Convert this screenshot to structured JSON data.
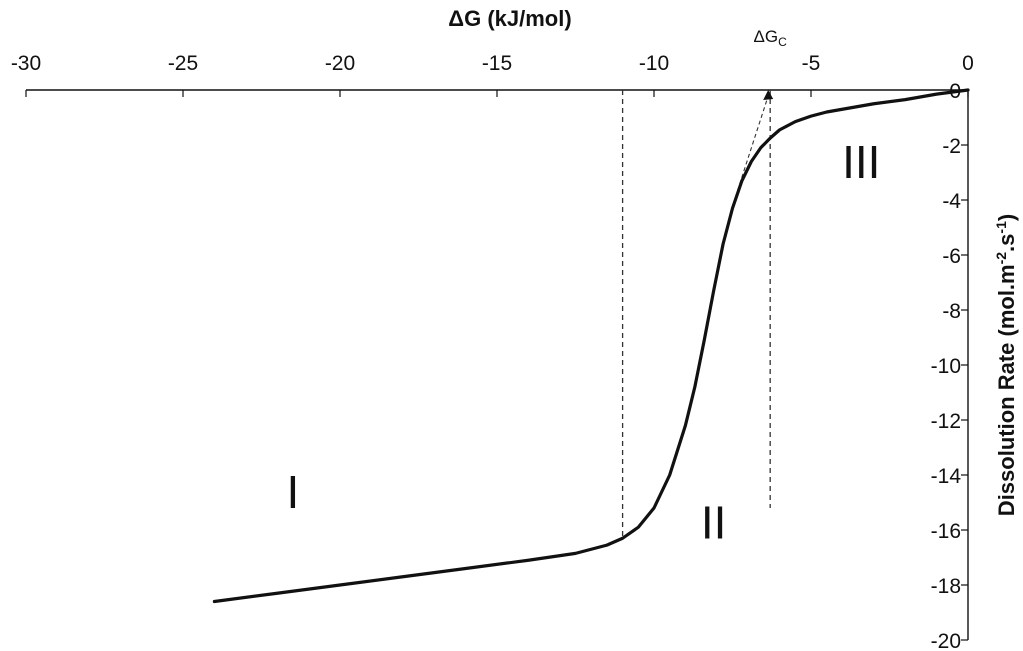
{
  "chart_data": {
    "type": "line",
    "xlabel_parts": [
      "ΔG (kJ/mol)"
    ],
    "ylabel_parts": [
      "Dissolution Rate (mol.m",
      "-2",
      ".s",
      "-1",
      ")"
    ],
    "xlim": [
      -30,
      0
    ],
    "ylim": [
      -20,
      0
    ],
    "x_ticks": [
      "-30",
      "-25",
      "-20",
      "-15",
      "-10",
      "-5",
      "0"
    ],
    "x_tick_values": [
      -30,
      -25,
      -20,
      -15,
      -10,
      -5,
      0
    ],
    "y_ticks": [
      "0",
      "-2",
      "-4",
      "-6",
      "-8",
      "-10",
      "-12",
      "-14",
      "-16",
      "-18",
      "-20"
    ],
    "y_tick_values": [
      0,
      -2,
      -4,
      -6,
      -8,
      -10,
      -12,
      -14,
      -16,
      -18,
      -20
    ],
    "x_axis_position": "top",
    "y_axis_position": "right",
    "grid": false,
    "series": [
      {
        "x": [
          -24.0,
          -22.0,
          -20.0,
          -18.0,
          -16.0,
          -14.0,
          -12.5,
          -11.5,
          -11.0,
          -10.5,
          -10.0,
          -9.5,
          -9.0,
          -8.7,
          -8.4,
          -8.1,
          -7.8,
          -7.5,
          -7.2,
          -6.9,
          -6.6,
          -6.3,
          -6.0,
          -5.5,
          -5.0,
          -4.5,
          -4.0,
          -3.0,
          -2.0,
          -1.0,
          0.0
        ],
        "y": [
          -18.6,
          -18.3,
          -18.0,
          -17.7,
          -17.4,
          -17.1,
          -16.85,
          -16.55,
          -16.3,
          -15.9,
          -15.2,
          -14.0,
          -12.2,
          -10.8,
          -9.1,
          -7.3,
          -5.6,
          -4.3,
          -3.3,
          -2.6,
          -2.1,
          -1.75,
          -1.45,
          -1.15,
          -0.95,
          -0.8,
          -0.7,
          -0.5,
          -0.35,
          -0.15,
          0.0
        ],
        "color": "#111111"
      }
    ],
    "reference_lines": [
      {
        "x": -11,
        "y_from": -16.3,
        "y_to": 0,
        "style": "dashed"
      },
      {
        "x": -6.3,
        "y_from": -15.2,
        "y_to": 0,
        "style": "dashed"
      }
    ],
    "annotations": {
      "critical_parts": [
        "ΔG",
        "C"
      ],
      "critical_x": -6.3,
      "regions": [
        {
          "label": "I",
          "x": -21.5,
          "y": -15.2
        },
        {
          "label": "II",
          "x": -8.1,
          "y": -16.3
        },
        {
          "label": "III",
          "x": -3.4,
          "y": -3.2
        }
      ]
    }
  }
}
